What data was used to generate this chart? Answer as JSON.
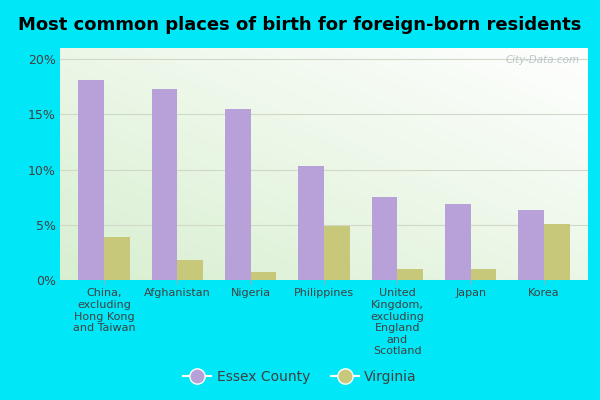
{
  "title": "Most common places of birth for foreign-born residents",
  "categories": [
    "China,\nexcluding\nHong Kong\nand Taiwan",
    "Afghanistan",
    "Nigeria",
    "Philippines",
    "United\nKingdom,\nexcluding\nEngland\nand\nScotland",
    "Japan",
    "Korea"
  ],
  "essex_values": [
    18.1,
    17.3,
    15.5,
    10.3,
    7.5,
    6.9,
    6.3
  ],
  "virginia_values": [
    3.9,
    1.8,
    0.7,
    4.9,
    1.0,
    1.0,
    5.1
  ],
  "essex_color": "#b8a0d8",
  "virginia_color": "#c8c87a",
  "bar_width": 0.35,
  "ylim": [
    0,
    21
  ],
  "yticks": [
    0,
    5,
    10,
    15,
    20
  ],
  "ytick_labels": [
    "0%",
    "5%",
    "10%",
    "15%",
    "20%"
  ],
  "legend_essex": "Essex County",
  "legend_virginia": "Virginia",
  "background_outer": "#00e8f8",
  "watermark": "City-Data.com",
  "grid_color": "#d0d8c8",
  "title_fontsize": 13,
  "tick_fontsize": 8,
  "legend_fontsize": 10
}
